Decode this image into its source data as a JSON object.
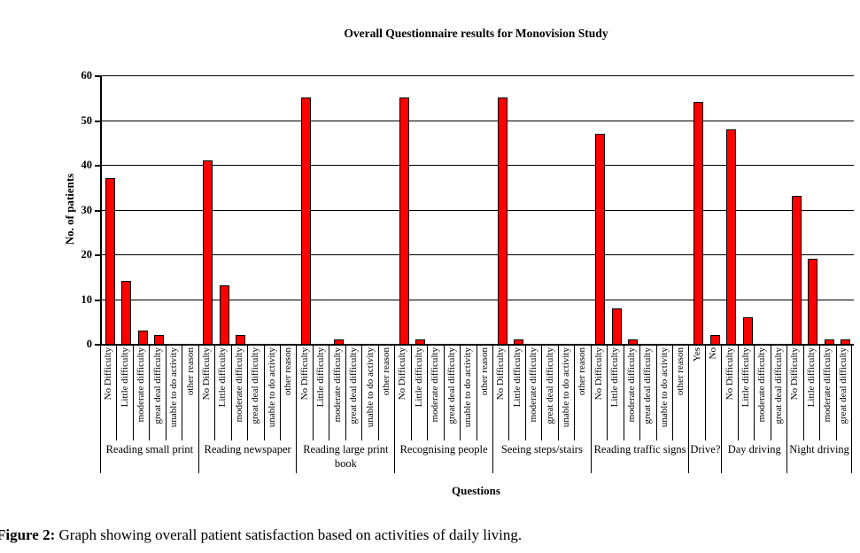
{
  "figure": {
    "caption_prefix": "Figure 2:",
    "caption_text": " Graph showing overall patient satisfaction based on activities of daily living."
  },
  "chart_data": {
    "type": "bar",
    "title": "Overall Questionnaire results for Monovision Study",
    "xlabel": "Questions",
    "ylabel": "No. of patients",
    "ylim": [
      0,
      60
    ],
    "yticks": [
      0,
      10,
      20,
      30,
      40,
      50,
      60
    ],
    "grid": "horizontal",
    "legend": "none",
    "bar_color": "#FE0000",
    "bar_border_color": "#000000",
    "groups": [
      {
        "label": "Reading small print",
        "categories": [
          "No Difficulty",
          "Little difficulty",
          "moderate difficulty",
          "great deal difficulty",
          "unable to do activity",
          "other reason"
        ],
        "values": [
          37,
          14,
          3,
          2,
          0,
          0
        ]
      },
      {
        "label": "Reading newspaper",
        "categories": [
          "No Difficulty",
          "Little difficulty",
          "moderate difficulty",
          "great deal difficulty",
          "unable to do activity",
          "other reason"
        ],
        "values": [
          41,
          13,
          2,
          0,
          0,
          0
        ]
      },
      {
        "label": "Reading large print book",
        "categories": [
          "No Difficulty",
          "Little difficulty",
          "moderate difficulty",
          "great deal difficulty",
          "unable to do activity",
          "other reason"
        ],
        "values": [
          55,
          0,
          1,
          0,
          0,
          0
        ]
      },
      {
        "label": "Recognising people",
        "categories": [
          "No Difficulty",
          "Little difficulty",
          "moderate difficulty",
          "great deal difficulty",
          "unable to do activity",
          "other reason"
        ],
        "values": [
          55,
          1,
          0,
          0,
          0,
          0
        ]
      },
      {
        "label": "Seeing steps/stairs",
        "categories": [
          "No Difficulty",
          "Little difficulty",
          "moderate difficulty",
          "great deal difficulty",
          "unable to do activity",
          "other reason"
        ],
        "values": [
          55,
          1,
          0,
          0,
          0,
          0
        ]
      },
      {
        "label": "Reading traffic signs",
        "categories": [
          "No Difficulty",
          "Little difficulty",
          "moderate difficulty",
          "great deal difficulty",
          "unable to do activity",
          "other reason"
        ],
        "values": [
          47,
          8,
          1,
          0,
          0,
          0
        ]
      },
      {
        "label": "Drive?",
        "categories": [
          "Yes",
          "No"
        ],
        "values": [
          54,
          2
        ]
      },
      {
        "label": "Day driving",
        "categories": [
          "No Difficulty",
          "Little difficulty",
          "moderate difficulty",
          "great deal difficulty"
        ],
        "values": [
          48,
          6,
          0,
          0
        ]
      },
      {
        "label": "Night driving",
        "categories": [
          "No Difficulty",
          "Little difficulty",
          "moderate difficulty",
          "great deal difficulty"
        ],
        "values": [
          33,
          19,
          1,
          1
        ]
      }
    ]
  }
}
